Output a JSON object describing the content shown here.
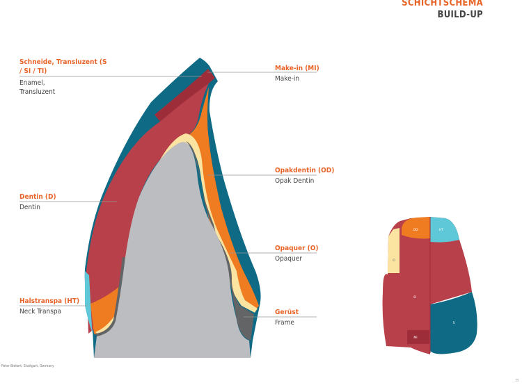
{
  "header": {
    "title": "SCHICHTSCHEMA",
    "subtitle": "BUILD-UP"
  },
  "labels": [
    {
      "de": "Schneide, Transluzent (S / SI / TI)",
      "en": "Enamel, Transluzent"
    },
    {
      "de": "Make-in (MI)",
      "en": "Make-in"
    },
    {
      "de": "Opakdentin (OD)",
      "en": "Opak Dentin"
    },
    {
      "de": "Dentin (D)",
      "en": "Dentin"
    },
    {
      "de": "Opaquer (O)",
      "en": "Opaquer"
    },
    {
      "de": "Halstranspa (HT)",
      "en": "Neck Transpa"
    },
    {
      "de": "Gerüst",
      "en": "Frame"
    }
  ],
  "schema": {
    "od": "OD",
    "ht": "HT",
    "o": "O",
    "d": "D",
    "s": "S",
    "mi": "MI"
  },
  "colors": {
    "enamel": "#0e6a85",
    "make_in": "#9e2d3a",
    "dentin": "#b8404a",
    "opak_dentin": "#f07c22",
    "opaquer": "#fbe3a1",
    "neck": "#5ec7d8",
    "frame": "#636466",
    "core": "#bcbdc0",
    "accent": "#e8652a"
  },
  "credit": "Peter Biekert, Stuttgart, Germany",
  "page": "35"
}
